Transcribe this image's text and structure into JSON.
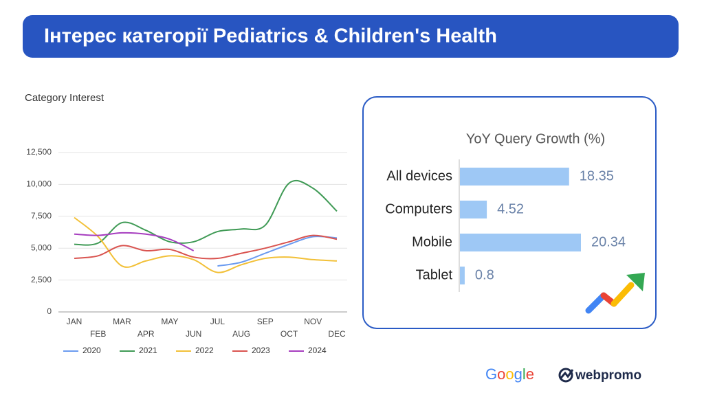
{
  "header": {
    "title": "Інтерес категорії Pediatrics & Children's Health"
  },
  "chart_data": [
    {
      "type": "line",
      "title": "Category Interest",
      "categories": [
        "JAN",
        "FEB",
        "MAR",
        "APR",
        "MAY",
        "JUN",
        "JUL",
        "AUG",
        "SEP",
        "OCT",
        "NOV",
        "DEC"
      ],
      "ylim": [
        0,
        12500
      ],
      "yticks": [
        0,
        {
          "value": 2500,
          "label": "2,500"
        },
        {
          "value": 5000,
          "label": "5,000"
        },
        {
          "value": 7500,
          "label": "7,500"
        },
        {
          "value": 10000,
          "label": "10,000"
        },
        {
          "value": 12500,
          "label": "12,500"
        }
      ],
      "grid": true,
      "legend": "bottom",
      "series": [
        {
          "name": "2020",
          "color": "#6b9bf0",
          "values": [
            null,
            null,
            null,
            null,
            null,
            null,
            3600,
            3900,
            4600,
            5300,
            5900,
            5800
          ]
        },
        {
          "name": "2021",
          "color": "#3f9a55",
          "values": [
            5300,
            5400,
            7000,
            6400,
            5500,
            5500,
            6300,
            6500,
            6800,
            10100,
            9700,
            7900
          ]
        },
        {
          "name": "2022",
          "color": "#f2c037",
          "values": [
            7400,
            5900,
            3600,
            4000,
            4400,
            4100,
            3100,
            3700,
            4200,
            4300,
            4100,
            4000
          ]
        },
        {
          "name": "2023",
          "color": "#d9534f",
          "values": [
            4200,
            4400,
            5200,
            4800,
            4900,
            4300,
            4200,
            4600,
            5000,
            5500,
            6000,
            5700
          ]
        },
        {
          "name": "2024",
          "color": "#a63dbf",
          "values": [
            6100,
            6000,
            6200,
            6100,
            5700,
            4800,
            null,
            null,
            null,
            null,
            null,
            null
          ]
        }
      ]
    },
    {
      "type": "barh",
      "title": "YoY Query Growth (%)",
      "categories": [
        "All devices",
        "Computers",
        "Mobile",
        "Tablet"
      ],
      "values": [
        18.35,
        4.52,
        20.34,
        0.8
      ],
      "color": "#9ec8f5"
    }
  ],
  "footer": {
    "logos": [
      "Google",
      "webpromo"
    ]
  }
}
